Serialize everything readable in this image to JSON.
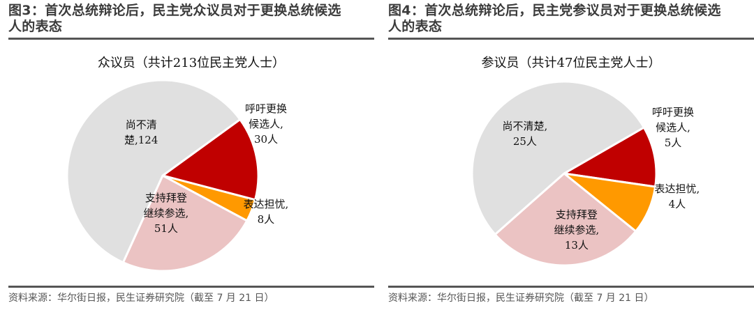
{
  "panels": [
    {
      "fig_title_line1": "图3：首次总统辩论后，民主党众议员对于更换总统候选",
      "fig_title_line2": "人的表态",
      "chart_title": "众议员（共计213位民主党人士）",
      "source": "资料来源：华尔街日报，民生证券研究院（截至 7 月 21 日）"
    },
    {
      "fig_title_line1": "图4：首次总统辩论后，民主党参议员对于更换总统候选",
      "fig_title_line2": "人的表态",
      "chart_title": "参议员（共计47位民主党人士）",
      "source": "资料来源：华尔街日报，民生证券研究院（截至 7 月 21 日）"
    }
  ],
  "chart_data": [
    {
      "type": "pie",
      "title": "众议员（共计213位民主党人士）",
      "categories": [
        "呼吁更换候选人",
        "表达担忧",
        "支持拜登继续参选",
        "尚不清楚"
      ],
      "values": [
        30,
        8,
        51,
        124
      ],
      "unit": "人",
      "colors": [
        "#c00000",
        "#ff9900",
        "#ebc3c3",
        "#e0e0e0"
      ],
      "labels": [
        "呼吁更换\n候选人,\n30人",
        "表达担忧,\n8人",
        "支持拜登\n继续参选,\n51人",
        "尚不清\n楚,124"
      ],
      "legend": "none (data labels on slices)"
    },
    {
      "type": "pie",
      "title": "参议员（共计47位民主党人士）",
      "categories": [
        "呼吁更换候选人",
        "表达担忧",
        "支持拜登继续参选",
        "尚不清楚"
      ],
      "values": [
        5,
        4,
        13,
        25
      ],
      "unit": "人",
      "colors": [
        "#c00000",
        "#ff9900",
        "#ebc3c3",
        "#e0e0e0"
      ],
      "labels": [
        "呼吁更换\n候选人,\n5人",
        "表达担忧,\n4人",
        "支持拜登\n继续参选,\n13人",
        "尚不清楚,\n25人"
      ],
      "legend": "none (data labels on slices)"
    }
  ]
}
